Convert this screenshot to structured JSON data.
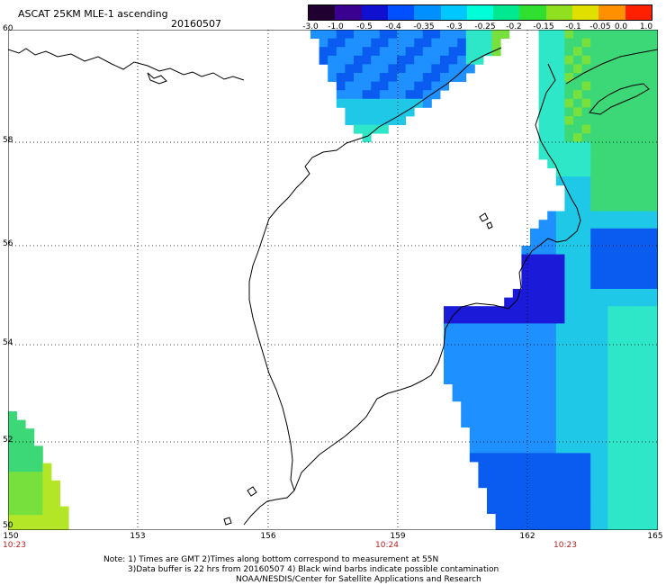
{
  "header": {
    "title": "ASCAT 25KM MLE-1 ascending",
    "date": "20160507"
  },
  "colorbar": {
    "ticks": [
      "-3.0",
      "-1.0",
      "-0.5",
      "-0.4",
      "-0.35",
      "-0.3",
      "-0.25",
      "-0.2",
      "-0.15",
      "-0.1",
      "-0.05",
      "0.0",
      "1.0"
    ],
    "colors": [
      "#200030",
      "#3a0090",
      "#1010d0",
      "#0050ff",
      "#0090ff",
      "#00c8ff",
      "#00ffd8",
      "#00e890",
      "#30e030",
      "#90e020",
      "#e0e000",
      "#ff9000",
      "#ff2000"
    ]
  },
  "axes": {
    "lat_labels": [
      "60",
      "58",
      "56",
      "54",
      "52",
      "50"
    ],
    "lon_labels": [
      "150",
      "153",
      "156",
      "159",
      "162",
      "165"
    ],
    "time_labels": [
      "10:23",
      "10:24",
      "10:23"
    ]
  },
  "notes": {
    "line1": "Note: 1) Times are GMT 2)Times along bottom correspond to measurement at 55N",
    "line2": "3)Data buffer is 22 hrs from 20160507 4) Black wind barbs indicate possible contamination",
    "line3": "NOAA/NESDIS/Center for Satellite Applications and Research"
  },
  "palette": {
    "deep_blue": "#1a1ad8",
    "blue": "#0a5cf0",
    "light_blue": "#1e90ff",
    "cyan": "#1ec8e6",
    "aqua": "#2ee6c8",
    "green": "#3cd878",
    "lime": "#78e03c",
    "yellow_green": "#b4e628"
  }
}
